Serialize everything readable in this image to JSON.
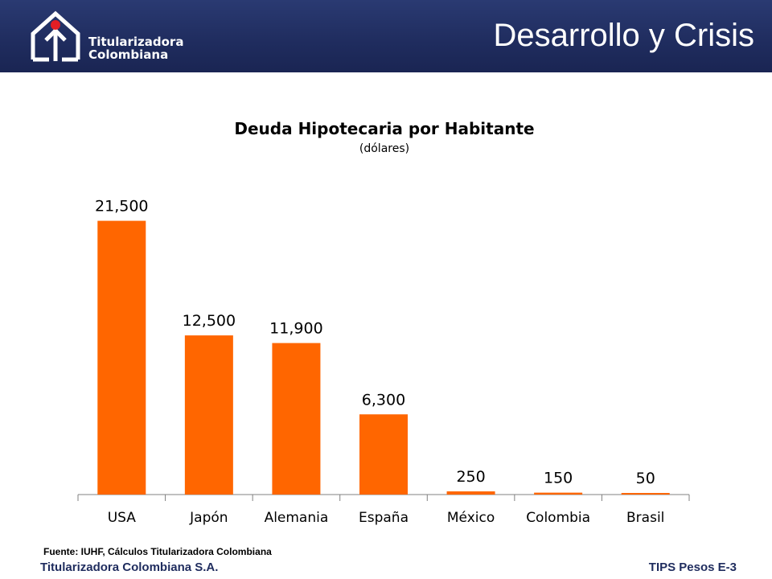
{
  "header": {
    "logo_line1": "Titularizadora",
    "logo_line2": "Colombiana",
    "slide_title": "Desarrollo y Crisis",
    "background_color": "#1f2c5e",
    "logo_dot_color": "#e31e24"
  },
  "chart_data": {
    "type": "bar",
    "title": "Deuda Hipotecaria por Habitante",
    "subtitle": "(dólares)",
    "categories": [
      "USA",
      "Japón",
      "Alemania",
      "España",
      "México",
      "Colombia",
      "Brasil"
    ],
    "values": [
      21500,
      12500,
      11900,
      6300,
      250,
      150,
      50
    ],
    "data_labels": [
      "21,500",
      "12,500",
      "11,900",
      "6,300",
      "250",
      "150",
      "50"
    ],
    "ylim": [
      0,
      24000
    ],
    "bar_color": "#ff6600",
    "grid": false,
    "legend": "none"
  },
  "source_note": "Fuente: IUHF, Cálculos Titularizadora Colombiana",
  "footer": {
    "company": "Titularizadora Colombiana S.A.",
    "slide_code": "TIPS Pesos E-3"
  }
}
